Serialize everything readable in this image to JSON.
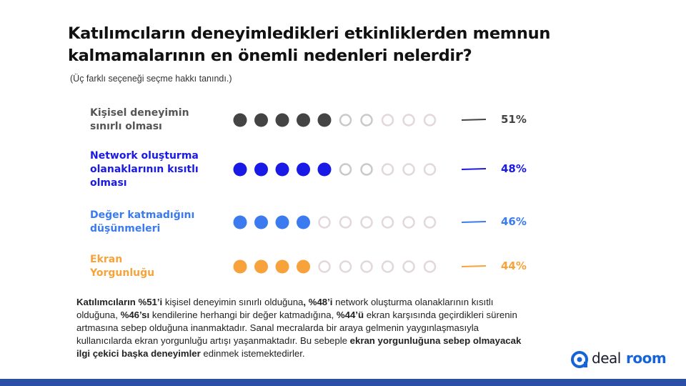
{
  "title": "Katılımcıların deneyimledikleri etkinliklerden memnun kalmamalarının en önemli nedenleri nelerdir?",
  "subtitle": "(Üç farklı seçeneği seçme hakkı tanındı.)",
  "chart_data": {
    "type": "pictograph",
    "dot_total": 10,
    "rows": [
      {
        "label_lines": [
          "Kişisel deneyimin",
          "sınırlı olması"
        ],
        "value": 51,
        "value_label": "51%",
        "filled_dots": 5,
        "color": "#444444",
        "label_color": "#555555"
      },
      {
        "label_lines": [
          "Network oluşturma",
          "olanaklarının kısıtlı",
          "olması"
        ],
        "value": 48,
        "value_label": "48%",
        "filled_dots": 5,
        "color": "#1a1ae6",
        "label_color": "#1a1ae6"
      },
      {
        "label_lines": [
          "Değer katmadığını",
          "düşünmeleri"
        ],
        "value": 46,
        "value_label": "46%",
        "filled_dots": 4,
        "color": "#3b7bef",
        "label_color": "#3b7bef"
      },
      {
        "label_lines": [
          "Ekran",
          "Yorgunluğu"
        ],
        "value": 44,
        "value_label": "44%",
        "filled_dots": 4,
        "color": "#f7a23a",
        "label_color": "#f7a23a"
      }
    ]
  },
  "summary": [
    {
      "text": "Katılımcıların %51’i",
      "bold": true
    },
    {
      "text": " kişisel deneyimin sınırlı olduğuna",
      "bold": false
    },
    {
      "text": ", %48’i",
      "bold": true
    },
    {
      "text": " network oluşturma olanaklarının kısıtlı olduğuna, ",
      "bold": false
    },
    {
      "text": "%46’sı",
      "bold": true
    },
    {
      "text": " kendilerine herhangi bir değer katmadığına, ",
      "bold": false
    },
    {
      "text": "%44’ü",
      "bold": true
    },
    {
      "text": " ekran karşısında geçirdikleri sürenin artmasına sebep olduğuna inanmaktadır. Sanal mecralarda bir araya gelmenin yaygınlaşmasıyla kullanıcılarda ekran yorgunluğu artışı yaşanmaktadır. Bu sebeple ",
      "bold": false
    },
    {
      "text": "ekran yorgunluğuna sebep olmayacak ilgi çekici başka deneyimler",
      "bold": true
    },
    {
      "text": " edinmek istemektedirler.",
      "bold": false
    }
  ],
  "logo": {
    "part1": "deal",
    "part2": "room",
    "brand_color": "#1565d8"
  },
  "colors": {
    "empty_dot": "#c9c9c9",
    "light_empty_dot": "#e2d8dc",
    "bottom_bar": "#2b4fa6"
  }
}
